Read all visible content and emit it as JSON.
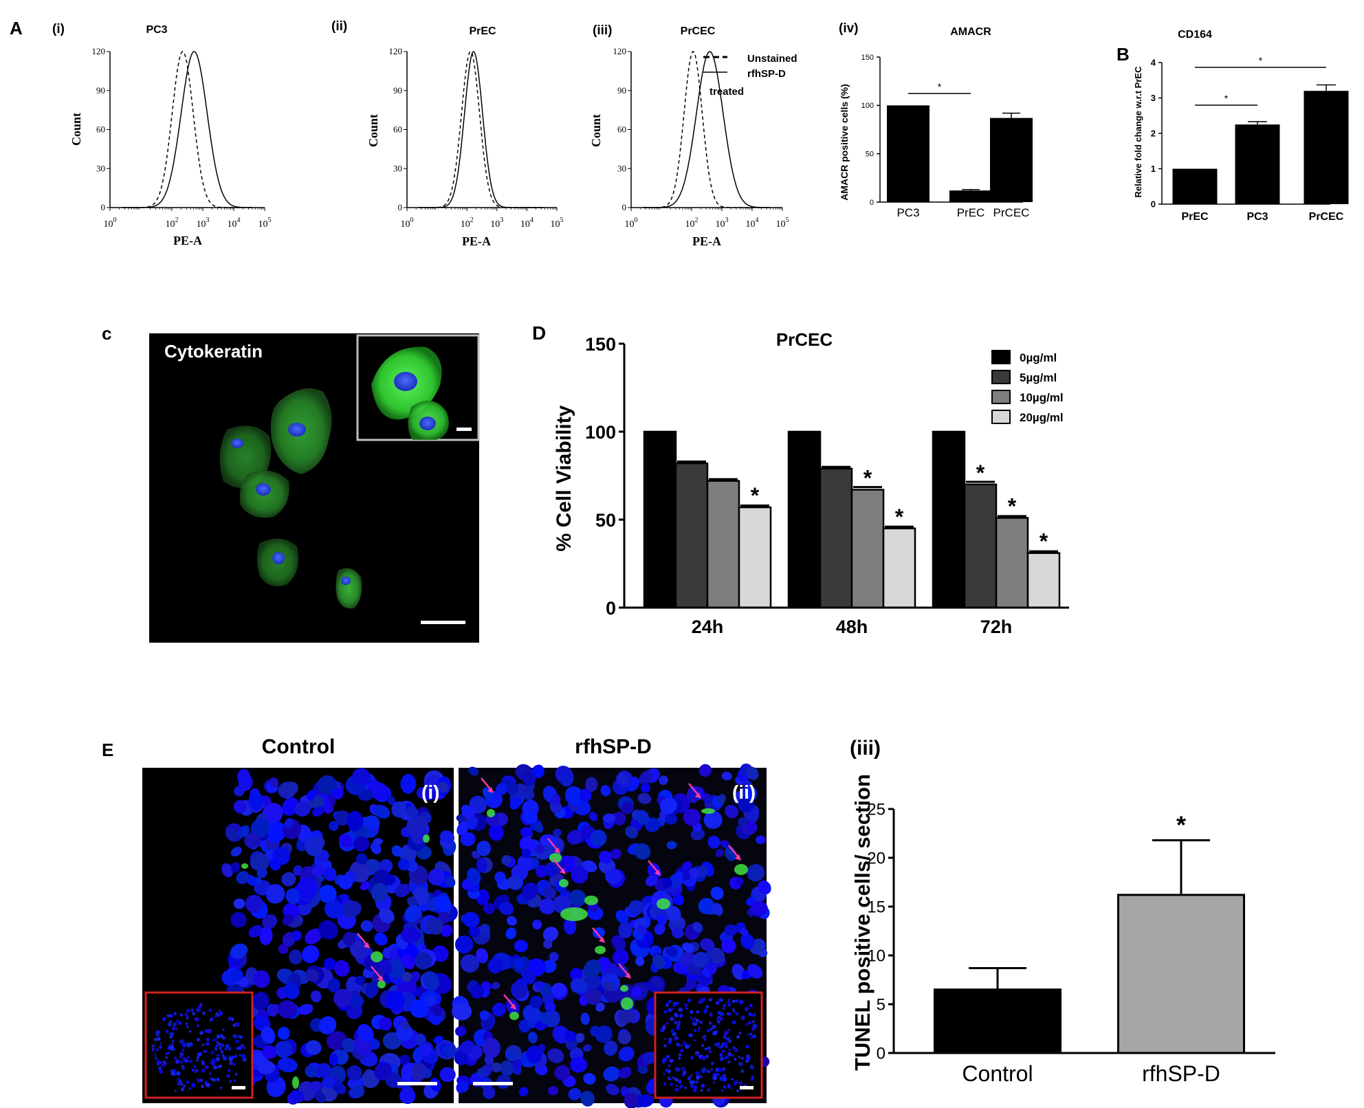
{
  "panel_letters": [
    "A",
    "B",
    "c",
    "D",
    "E"
  ],
  "chart_data": [
    {
      "id": "A-i",
      "type": "line",
      "roman": "(i)",
      "title": "PC3",
      "xlabel": "PE-A",
      "ylabel": "Count",
      "xscale": "log",
      "xticks": [
        "10^0",
        "10^2",
        "10^3",
        "10^4",
        "10^5"
      ],
      "xtick_exponents": [
        0,
        2,
        3,
        4,
        5
      ],
      "ylim": [
        0,
        120
      ],
      "yticks": [
        0,
        30,
        60,
        90,
        120
      ],
      "series": [
        {
          "style": "dashed",
          "peak_log10": 2.35,
          "width_log10": 0.34,
          "peak": 120
        },
        {
          "style": "solid",
          "peak_log10": 2.72,
          "width_log10": 0.42,
          "peak": 120
        }
      ]
    },
    {
      "id": "A-ii",
      "type": "line",
      "roman": "(ii)",
      "title": "PrEC",
      "xlabel": "PE-A",
      "ylabel": "Count",
      "xscale": "log",
      "xticks": [
        "10^0",
        "10^2",
        "10^3",
        "10^4",
        "10^5"
      ],
      "xtick_exponents": [
        0,
        2,
        3,
        4,
        5
      ],
      "ylim": [
        0,
        120
      ],
      "yticks": [
        0,
        30,
        60,
        90,
        120
      ],
      "series": [
        {
          "style": "dashed",
          "peak_log10": 2.12,
          "width_log10": 0.3,
          "peak": 120
        },
        {
          "style": "solid",
          "peak_log10": 2.22,
          "width_log10": 0.3,
          "peak": 120
        }
      ]
    },
    {
      "id": "A-iii",
      "type": "line",
      "roman": "(iii)",
      "title": "PrCEC",
      "xlabel": "PE-A",
      "ylabel": "Count",
      "xscale": "log",
      "xticks": [
        "10^0",
        "10^2",
        "10^3",
        "10^4",
        "10^5"
      ],
      "xtick_exponents": [
        0,
        2,
        3,
        4,
        5
      ],
      "ylim": [
        0,
        120
      ],
      "yticks": [
        0,
        30,
        60,
        90,
        120
      ],
      "legend": [
        "Unstained",
        "rfhSP-D",
        "treated"
      ],
      "series": [
        {
          "style": "dashed",
          "peak_log10": 2.05,
          "width_log10": 0.3,
          "peak": 120
        },
        {
          "style": "solid",
          "peak_log10": 2.6,
          "width_log10": 0.44,
          "peak": 120
        }
      ]
    },
    {
      "id": "A-iv",
      "type": "bar",
      "roman": "(iv)",
      "title": "AMACR",
      "ylabel": "AMACR positive cells (%)",
      "ylim": [
        0,
        150
      ],
      "yticks": [
        0,
        50,
        100,
        150
      ],
      "categories": [
        "PC3",
        "PrEC",
        "PrCEC"
      ],
      "values": [
        100,
        12,
        87
      ],
      "errors": [
        0,
        1,
        5
      ],
      "significance": [
        {
          "from": 0,
          "to": 1,
          "label": "*"
        }
      ]
    },
    {
      "id": "B",
      "type": "bar",
      "title": "CD164",
      "ylabel": "Relative fold change w.r.t PrEC",
      "ylim": [
        0,
        4
      ],
      "yticks": [
        0,
        1,
        2,
        3,
        4
      ],
      "categories": [
        "PrEC",
        "PC3",
        "PrCEC"
      ],
      "values": [
        1,
        2.25,
        3.2
      ],
      "errors": [
        0,
        0.08,
        0.17
      ],
      "significance": [
        {
          "from": 0,
          "to": 1,
          "label": "*"
        },
        {
          "from": 0,
          "to": 2,
          "label": "*"
        }
      ]
    },
    {
      "id": "D",
      "type": "bar",
      "title": "PrCEC",
      "ylabel": "% Cell Viability",
      "ylim": [
        0,
        150
      ],
      "yticks": [
        0,
        50,
        100,
        150
      ],
      "categories": [
        "24h",
        "48h",
        "72h"
      ],
      "series": [
        {
          "name": "0µg/ml",
          "color": "#000000",
          "values": [
            100,
            100,
            100
          ],
          "errors": [
            0,
            0,
            0
          ],
          "stars": [
            false,
            false,
            false
          ]
        },
        {
          "name": "5µg/ml",
          "color": "#3a3a3a",
          "values": [
            82,
            79,
            70
          ],
          "errors": [
            1,
            1,
            1.5
          ],
          "stars": [
            false,
            false,
            true
          ]
        },
        {
          "name": "10µg/ml",
          "color": "#7e7e7e",
          "values": [
            72,
            67,
            51
          ],
          "errors": [
            1,
            1.5,
            1
          ],
          "stars": [
            false,
            true,
            true
          ]
        },
        {
          "name": "20µg/ml",
          "color": "#d8d8d8",
          "values": [
            57,
            45,
            31
          ],
          "errors": [
            1,
            1,
            1
          ],
          "stars": [
            true,
            true,
            true
          ]
        }
      ],
      "legend_position": "top-right"
    },
    {
      "id": "E-iii",
      "type": "bar",
      "roman": "(iii)",
      "ylabel": "TUNEL positive cells/ section",
      "ylim": [
        0,
        25
      ],
      "yticks": [
        0,
        5,
        10,
        15,
        20,
        25
      ],
      "categories": [
        "Control",
        "rfhSP-D"
      ],
      "values": [
        6.5,
        16.2
      ],
      "errors": [
        2.2,
        5.6
      ],
      "colors": [
        "#000000",
        "#a6a6a6"
      ],
      "stars": [
        false,
        true
      ]
    }
  ],
  "images": {
    "cytokeratin": {
      "label": "Cytokeratin"
    },
    "control": {
      "title": "Control",
      "roman": "(i)"
    },
    "rfhspd": {
      "title": "rfhSP-D",
      "roman": "(ii)"
    }
  },
  "colors": {
    "nucleus": "#1c1cf5",
    "stain": "#3fe23f",
    "arrow": "#ff3aa8",
    "inset_border": "#d42020"
  }
}
